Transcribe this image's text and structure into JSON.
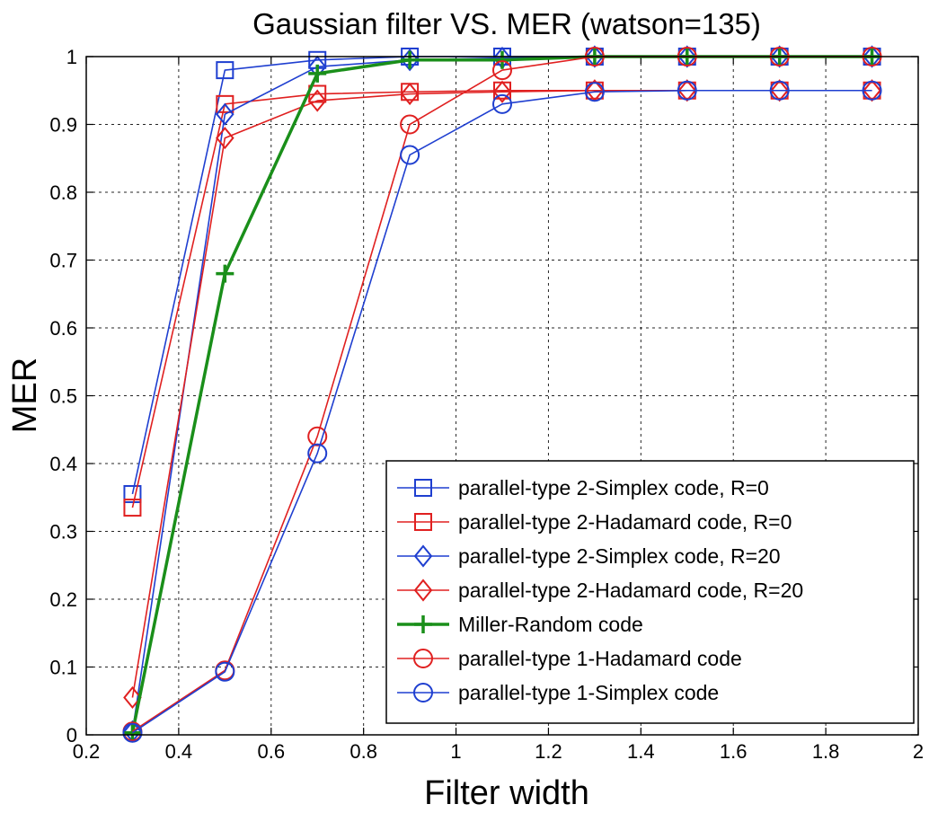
{
  "chart_data": {
    "type": "line",
    "title": "Gaussian filter VS. MER (watson=135)",
    "xlabel": "Filter width",
    "ylabel": "MER",
    "xlim": [
      0.2,
      2
    ],
    "ylim": [
      0,
      1
    ],
    "xticks": [
      0.2,
      0.4,
      0.6,
      0.8,
      1,
      1.2,
      1.4,
      1.6,
      1.8,
      2
    ],
    "xtick_labels": [
      "0.2",
      "0.4",
      "0.6",
      "0.8",
      "1",
      "1.2",
      "1.4",
      "1.6",
      "1.8",
      "2"
    ],
    "yticks": [
      0,
      0.1,
      0.2,
      0.3,
      0.4,
      0.5,
      0.6,
      0.7,
      0.8,
      0.9,
      1
    ],
    "ytick_labels": [
      "0",
      "0.1",
      "0.2",
      "0.3",
      "0.4",
      "0.5",
      "0.6",
      "0.7",
      "0.8",
      "0.9",
      "1"
    ],
    "grid": true,
    "legend_position": "bottom-right",
    "x": [
      0.3,
      0.5,
      0.7,
      0.9,
      1.1,
      1.3,
      1.5,
      1.7,
      1.9
    ],
    "series": [
      {
        "name": "parallel-type 2-Simplex code, R=0",
        "color": "#1f3fd0",
        "marker": "square",
        "values": [
          0.355,
          0.98,
          0.995,
          1.0,
          1.0,
          1.0,
          1.0,
          1.0,
          1.0
        ]
      },
      {
        "name": "parallel-type 2-Hadamard code, R=0",
        "color": "#e02020",
        "marker": "square",
        "values": [
          0.335,
          0.93,
          0.945,
          0.948,
          0.95,
          0.95,
          0.95,
          0.95,
          0.95
        ]
      },
      {
        "name": "parallel-type 2-Simplex code, R=20",
        "color": "#1f3fd0",
        "marker": "diamond",
        "values": [
          0.005,
          0.915,
          0.985,
          0.995,
          0.998,
          1.0,
          1.0,
          1.0,
          1.0
        ]
      },
      {
        "name": "parallel-type 2-Hadamard code, R=20",
        "color": "#e02020",
        "marker": "diamond",
        "values": [
          0.055,
          0.88,
          0.935,
          0.945,
          0.948,
          0.95,
          0.95,
          0.95,
          0.95
        ]
      },
      {
        "name": "Miller-Random code",
        "color": "#1a8f1a",
        "marker": "plus",
        "values": [
          0.003,
          0.68,
          0.975,
          0.995,
          0.995,
          1.0,
          1.0,
          1.0,
          1.0
        ]
      },
      {
        "name": "parallel-type 1-Hadamard code",
        "color": "#e02020",
        "marker": "circle",
        "values": [
          0.005,
          0.095,
          0.44,
          0.9,
          0.98,
          1.0,
          1.0,
          1.0,
          1.0
        ]
      },
      {
        "name": "parallel-type 1-Simplex code",
        "color": "#1f3fd0",
        "marker": "circle",
        "values": [
          0.003,
          0.093,
          0.415,
          0.855,
          0.93,
          0.948,
          0.95,
          0.95,
          0.95
        ]
      }
    ]
  }
}
